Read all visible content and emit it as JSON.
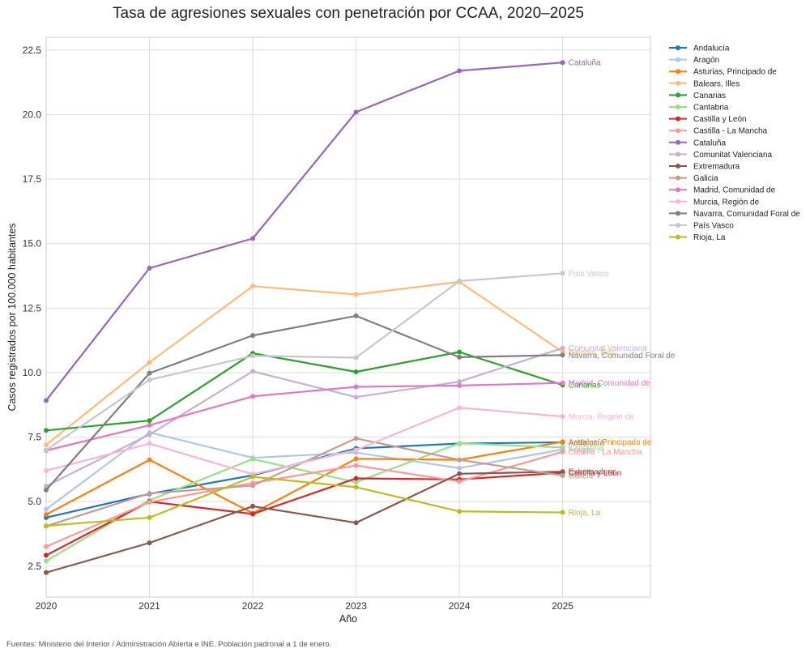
{
  "chart_data": {
    "type": "line",
    "title": "Tasa de agresiones sexuales con penetración por CCAA, 2020–2025",
    "xlabel": "Año",
    "ylabel": "Casos registrados por 100.000 habitantes",
    "x": [
      2020,
      2021,
      2022,
      2023,
      2024,
      2025
    ],
    "xlim": [
      2020,
      2025.85
    ],
    "ylim": [
      1.3,
      23.0
    ],
    "yticks": [
      "2.5",
      "5.0",
      "7.5",
      "10.0",
      "12.5",
      "15.0",
      "17.5",
      "20.0",
      "22.5"
    ],
    "xticks": [
      "2020",
      "2021",
      "2022",
      "2023",
      "2024",
      "2025"
    ],
    "grid": true,
    "legend_position": "outside-right",
    "series": [
      {
        "name": "Andalucía",
        "color": "#1f77b4",
        "values": [
          4.38,
          5.3,
          6.02,
          7.06,
          7.25,
          7.3
        ]
      },
      {
        "name": "Aragón",
        "color": "#aec7e8",
        "values": [
          4.7,
          7.68,
          6.7,
          6.9,
          6.3,
          7.02
        ]
      },
      {
        "name": "Asturias, Principado de",
        "color": "#ff7f0e",
        "values": [
          4.5,
          6.62,
          4.55,
          6.66,
          6.62,
          7.32
        ]
      },
      {
        "name": "Balears, Illes",
        "color": "#ffbb78",
        "values": [
          7.2,
          10.4,
          13.35,
          13.03,
          13.52,
          10.8
        ]
      },
      {
        "name": "Canarias",
        "color": "#2ca02c",
        "values": [
          7.76,
          8.14,
          10.75,
          10.03,
          10.8,
          9.52
        ]
      },
      {
        "name": "Cantabria",
        "color": "#98df8a",
        "values": [
          2.7,
          5.05,
          6.65,
          5.75,
          7.26,
          7.1
        ]
      },
      {
        "name": "Castilla y León",
        "color": "#d62728",
        "values": [
          2.92,
          5.0,
          4.52,
          5.9,
          5.86,
          6.12
        ]
      },
      {
        "name": "Castilla - La Mancha",
        "color": "#ff9896",
        "values": [
          3.26,
          4.98,
          5.72,
          6.4,
          5.78,
          6.93
        ]
      },
      {
        "name": "Cataluña",
        "color": "#9467bd",
        "values": [
          8.92,
          14.05,
          15.2,
          20.1,
          21.7,
          22.02
        ]
      },
      {
        "name": "Comunitat Valenciana",
        "color": "#c5b0d5",
        "values": [
          5.6,
          7.6,
          10.05,
          9.05,
          9.65,
          10.95
        ]
      },
      {
        "name": "Extremadura",
        "color": "#8c564b",
        "values": [
          2.25,
          3.4,
          4.82,
          4.18,
          6.08,
          6.16
        ]
      },
      {
        "name": "Galicia",
        "color": "#c49c94",
        "values": [
          4.05,
          5.32,
          5.62,
          7.45,
          6.62,
          6.01
        ]
      },
      {
        "name": "Madrid, Comunidad de",
        "color": "#e377c2",
        "values": [
          6.98,
          7.96,
          9.08,
          9.45,
          9.5,
          9.6
        ]
      },
      {
        "name": "Murcia, Región de",
        "color": "#f7b6d2",
        "values": [
          6.2,
          7.25,
          6.06,
          7.0,
          8.64,
          8.3
        ]
      },
      {
        "name": "Navarra, Comunidad Foral de",
        "color": "#7f7f7f",
        "values": [
          5.45,
          9.98,
          11.44,
          12.2,
          10.6,
          10.68
        ]
      },
      {
        "name": "País Vasco",
        "color": "#c7c7c7",
        "values": [
          7.0,
          9.72,
          10.65,
          10.58,
          13.55,
          13.85
        ]
      },
      {
        "name": "Rioja, La",
        "color": "#bcbd22",
        "values": [
          4.06,
          4.38,
          5.96,
          5.56,
          4.62,
          4.58
        ]
      }
    ]
  },
  "source_note": "Fuentes: Ministerio del Interior / Administración Abierta e INE. Población padronal a 1 de enero."
}
